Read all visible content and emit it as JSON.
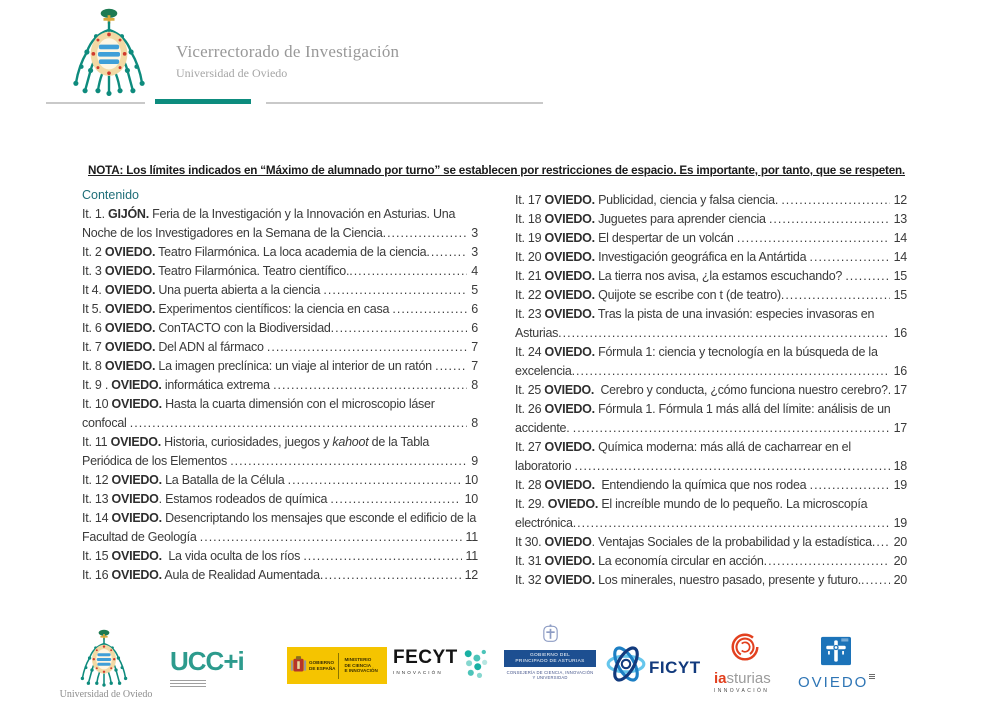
{
  "header": {
    "title": "Vicerrectorado de Investigación",
    "subtitle": "Universidad de Oviedo",
    "accent_teal": "#0d8c7e"
  },
  "nota": "NOTA: Los límites indicados en “Máximo de alumnado por turno” se establecen por restricciones de espacio. Es importante, por tanto, que se respeten.",
  "toc": {
    "heading": "Contenido",
    "heading_color": "#1f6e78",
    "columns": [
      {
        "entries": [
          {
            "lines": [
              [
                {
                  "t": "It. 1. "
                },
                {
                  "t": "GIJÓN.",
                  "b": 1
                },
                {
                  "t": " Feria de la Investigación y la Innovación en Asturias. Una"
                }
              ],
              [
                {
                  "t": "Noche de los Investigadores en la Semana de la Ciencia"
                }
              ]
            ],
            "page": "3"
          },
          {
            "lines": [
              [
                {
                  "t": "It. 2 "
                },
                {
                  "t": "OVIEDO.",
                  "b": 1
                },
                {
                  "t": " Teatro Filarmónica. La loca academia de la ciencia"
                }
              ]
            ],
            "page": "3"
          },
          {
            "lines": [
              [
                {
                  "t": "It. 3 "
                },
                {
                  "t": "OVIEDO.",
                  "b": 1
                },
                {
                  "t": " Teatro Filarmónica. Teatro científico."
                }
              ]
            ],
            "page": "4"
          },
          {
            "lines": [
              [
                {
                  "t": "It 4. "
                },
                {
                  "t": "OVIEDO.",
                  "b": 1
                },
                {
                  "t": " Una puerta abierta a la ciencia "
                }
              ]
            ],
            "page": "5"
          },
          {
            "lines": [
              [
                {
                  "t": "It 5. "
                },
                {
                  "t": "OVIEDO.",
                  "b": 1
                },
                {
                  "t": " Experimentos científicos: la ciencia en casa "
                }
              ]
            ],
            "page": "6"
          },
          {
            "lines": [
              [
                {
                  "t": "It. 6 "
                },
                {
                  "t": "OVIEDO.",
                  "b": 1
                },
                {
                  "t": " ConTACTO con la Biodiversidad"
                }
              ]
            ],
            "page": "6"
          },
          {
            "lines": [
              [
                {
                  "t": "It. 7 "
                },
                {
                  "t": "OVIEDO.",
                  "b": 1
                },
                {
                  "t": " Del ADN al fármaco "
                }
              ]
            ],
            "page": "7"
          },
          {
            "lines": [
              [
                {
                  "t": "It. 8 "
                },
                {
                  "t": "OVIEDO.",
                  "b": 1
                },
                {
                  "t": " La imagen preclínica: un viaje al interior de un ratón "
                }
              ]
            ],
            "page": "7"
          },
          {
            "lines": [
              [
                {
                  "t": "It. 9 . "
                },
                {
                  "t": "OVIEDO.",
                  "b": 1
                },
                {
                  "t": " informática extrema "
                }
              ]
            ],
            "page": "8"
          },
          {
            "lines": [
              [
                {
                  "t": "It. 10 "
                },
                {
                  "t": "OVIEDO.",
                  "b": 1
                },
                {
                  "t": " Hasta la cuarta dimensión con el microscopio láser"
                }
              ],
              [
                {
                  "t": "confocal "
                }
              ]
            ],
            "page": "8"
          },
          {
            "lines": [
              [
                {
                  "t": "It. 11 "
                },
                {
                  "t": "OVIEDO.",
                  "b": 1
                },
                {
                  "t": " Historia, curiosidades, juegos y "
                },
                {
                  "t": "kahoot",
                  "i": 1
                },
                {
                  "t": " de la Tabla"
                }
              ],
              [
                {
                  "t": "Periódica de los Elementos "
                }
              ]
            ],
            "page": "9"
          },
          {
            "lines": [
              [
                {
                  "t": "It. 12 "
                },
                {
                  "t": "OVIEDO.",
                  "b": 1
                },
                {
                  "t": " La Batalla de la Célula "
                }
              ]
            ],
            "page": "10"
          },
          {
            "lines": [
              [
                {
                  "t": "It. 13 "
                },
                {
                  "t": "OVIEDO",
                  "b": 1
                },
                {
                  "t": ". Estamos rodeados de química "
                }
              ]
            ],
            "page": "10"
          },
          {
            "lines": [
              [
                {
                  "t": "It. 14 "
                },
                {
                  "t": "OVIEDO.",
                  "b": 1
                },
                {
                  "t": " Desencriptando los mensajes que esconde el edificio de la"
                }
              ],
              [
                {
                  "t": "Facultad de Geología "
                }
              ]
            ],
            "page": "11"
          },
          {
            "lines": [
              [
                {
                  "t": "It. 15 "
                },
                {
                  "t": "OVIEDO.",
                  "b": 1
                },
                {
                  "t": "  La vida oculta de los ríos "
                }
              ]
            ],
            "page": "11"
          },
          {
            "lines": [
              [
                {
                  "t": "It. 16 "
                },
                {
                  "t": "OVIEDO.",
                  "b": 1
                },
                {
                  "t": " Aula de Realidad Aumentada"
                }
              ]
            ],
            "page": "12"
          }
        ]
      },
      {
        "entries": [
          {
            "lines": [
              [
                {
                  "t": "It. 17 "
                },
                {
                  "t": "OVIEDO.",
                  "b": 1
                },
                {
                  "t": " Publicidad, ciencia y falsa ciencia. "
                }
              ]
            ],
            "page": "12"
          },
          {
            "lines": [
              [
                {
                  "t": "It. 18 "
                },
                {
                  "t": "OVIEDO.",
                  "b": 1
                },
                {
                  "t": " Juguetes para aprender ciencia "
                }
              ]
            ],
            "page": "13"
          },
          {
            "lines": [
              [
                {
                  "t": "It. 19 "
                },
                {
                  "t": "OVIEDO.",
                  "b": 1
                },
                {
                  "t": " El despertar de un volcán "
                }
              ]
            ],
            "page": "14"
          },
          {
            "lines": [
              [
                {
                  "t": "It. 20 "
                },
                {
                  "t": "OVIEDO.",
                  "b": 1
                },
                {
                  "t": " Investigación geográfica en la Antártida "
                }
              ]
            ],
            "page": "14"
          },
          {
            "lines": [
              [
                {
                  "t": "It. 21 "
                },
                {
                  "t": "OVIEDO.",
                  "b": 1
                },
                {
                  "t": " La tierra nos avisa, ¿la estamos escuchando? "
                }
              ]
            ],
            "page": "15"
          },
          {
            "lines": [
              [
                {
                  "t": "It. 22 "
                },
                {
                  "t": "OVIEDO.",
                  "b": 1
                },
                {
                  "t": " Quijote se escribe con t (de teatro)"
                }
              ]
            ],
            "page": "15"
          },
          {
            "lines": [
              [
                {
                  "t": "It. 23 "
                },
                {
                  "t": "OVIEDO.",
                  "b": 1
                },
                {
                  "t": " Tras la pista de una invasión: especies invasoras en"
                }
              ],
              [
                {
                  "t": "Asturias"
                }
              ]
            ],
            "page": "16"
          },
          {
            "lines": [
              [
                {
                  "t": "It. 24 "
                },
                {
                  "t": "OVIEDO.",
                  "b": 1
                },
                {
                  "t": " Fórmula 1: ciencia y tecnología en la búsqueda de la"
                }
              ],
              [
                {
                  "t": "excelencia"
                }
              ]
            ],
            "page": "16"
          },
          {
            "lines": [
              [
                {
                  "t": "It. 25 "
                },
                {
                  "t": "OVIEDO.",
                  "b": 1
                },
                {
                  "t": "  Cerebro y conducta, ¿cómo funciona nuestro cerebro?."
                }
              ]
            ],
            "page": "17"
          },
          {
            "lines": [
              [
                {
                  "t": "It. 26 "
                },
                {
                  "t": "OVIEDO.",
                  "b": 1
                },
                {
                  "t": " Fórmula 1. Fórmula 1 más allá del límite: análisis de un"
                }
              ],
              [
                {
                  "t": "accidente. "
                }
              ]
            ],
            "page": "17"
          },
          {
            "lines": [
              [
                {
                  "t": "It. 27 "
                },
                {
                  "t": "OVIEDO.",
                  "b": 1
                },
                {
                  "t": " Química moderna: más allá de cacharrear en el"
                }
              ],
              [
                {
                  "t": "laboratorio "
                }
              ]
            ],
            "page": "18"
          },
          {
            "lines": [
              [
                {
                  "t": "It. 28 "
                },
                {
                  "t": "OVIEDO.",
                  "b": 1
                },
                {
                  "t": "  Entendiendo la química que nos rodea "
                }
              ]
            ],
            "page": "19"
          },
          {
            "lines": [
              [
                {
                  "t": "It. 29. "
                },
                {
                  "t": "OVIEDO.",
                  "b": 1
                },
                {
                  "t": " El increíble mundo de lo pequeño. La microscopía"
                }
              ],
              [
                {
                  "t": "electrónica"
                }
              ]
            ],
            "page": "19"
          },
          {
            "lines": [
              [
                {
                  "t": "It 30. "
                },
                {
                  "t": "OVIEDO",
                  "b": 1
                },
                {
                  "t": ". Ventajas Sociales de la probabilidad y la estadística"
                }
              ]
            ],
            "page": "20"
          },
          {
            "lines": [
              [
                {
                  "t": "It. 31 "
                },
                {
                  "t": "OVIEDO.",
                  "b": 1
                },
                {
                  "t": " La economía circular en acción"
                }
              ]
            ],
            "page": "20"
          },
          {
            "lines": [
              [
                {
                  "t": "It. 32 "
                },
                {
                  "t": "OVIEDO.",
                  "b": 1
                },
                {
                  "t": " Los minerales, nuestro pasado, presente y futuro."
                }
              ]
            ],
            "page": "20"
          }
        ]
      }
    ]
  },
  "footer": {
    "uniovi_caption": "Universidad de Oviedo",
    "ucci_label": "UCC+i",
    "ministerio": {
      "left1": "GOBIERNO",
      "left2": "DE ESPAÑA",
      "right1": "MINISTERIO",
      "right2": "DE CIENCIA",
      "right3": "E INNOVACIÓN"
    },
    "fecyt": {
      "name": "FECYT",
      "sub": "INNOVACIÓN"
    },
    "principado": {
      "box1": "GOBIERNO DEL",
      "box2": "PRINCIPADO DE ASTURIAS",
      "cap1": "CONSEJERÍA DE CIENCIA, INNOVACIÓN",
      "cap2": "Y UNIVERSIDAD"
    },
    "ficyt": "FICYT",
    "iasturias": {
      "ia": "ia",
      "rest": "sturias",
      "sub": "INNOVACIÓN"
    },
    "oviedo": "OVIEDO"
  }
}
